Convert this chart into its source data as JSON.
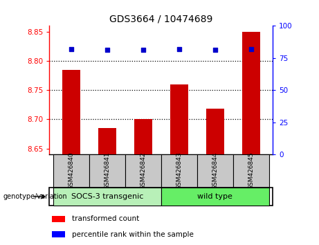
{
  "title": "GDS3664 / 10474689",
  "samples": [
    "GSM426840",
    "GSM426841",
    "GSM426842",
    "GSM426843",
    "GSM426844",
    "GSM426845"
  ],
  "bar_values": [
    8.785,
    8.685,
    8.7,
    8.76,
    8.718,
    8.85
  ],
  "percentile_values": [
    82,
    81,
    81,
    82,
    81,
    82
  ],
  "ylim_left": [
    8.64,
    8.86
  ],
  "ylim_right": [
    0,
    100
  ],
  "yticks_left": [
    8.65,
    8.7,
    8.75,
    8.8,
    8.85
  ],
  "yticks_right": [
    0,
    25,
    50,
    75,
    100
  ],
  "bar_color": "#cc0000",
  "point_color": "#0000cc",
  "bar_bottom": 8.64,
  "group_labels": [
    "SOCS-3 transgenic",
    "wild type"
  ],
  "group_sizes": [
    3,
    3
  ],
  "group_colors": [
    "#b8f0b8",
    "#66ee66"
  ],
  "genotype_label": "genotype/variation",
  "legend_bar_label": "transformed count",
  "legend_point_label": "percentile rank within the sample",
  "grid_yticks": [
    8.7,
    8.75,
    8.8
  ],
  "tick_area_color": "#c8c8c8",
  "title_fontsize": 10,
  "bar_width": 0.5
}
